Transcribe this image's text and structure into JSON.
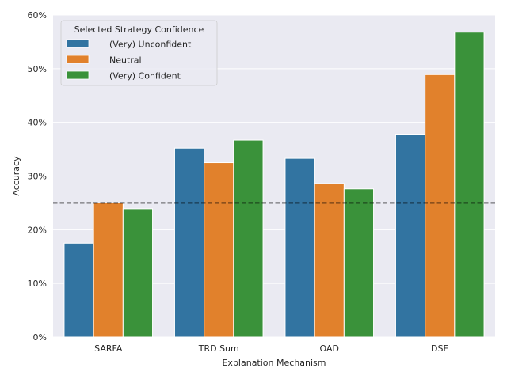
{
  "chart_data": {
    "type": "bar",
    "xlabel": "Explanation Mechanism",
    "ylabel": "Accuracy",
    "ylim": [
      0,
      60
    ],
    "yticks": [
      0,
      10,
      20,
      30,
      40,
      50,
      60
    ],
    "ytick_labels": [
      "0%",
      "10%",
      "20%",
      "30%",
      "40%",
      "50%",
      "60%"
    ],
    "categories": [
      "SARFA",
      "TRD Sum",
      "OAD",
      "DSE"
    ],
    "legend": {
      "title": "Selected Strategy Confidence",
      "position": "top-left"
    },
    "series": [
      {
        "name": "(Very) Unconfident",
        "color": "#3274a1",
        "values": [
          17.5,
          35.2,
          33.3,
          37.8
        ]
      },
      {
        "name": "Neutral",
        "color": "#e1812c",
        "values": [
          25.0,
          32.5,
          28.6,
          48.9
        ]
      },
      {
        "name": "(Very) Confident",
        "color": "#3a923a",
        "values": [
          23.9,
          36.7,
          27.6,
          56.8
        ]
      }
    ],
    "reference_line": {
      "value": 25,
      "style": "dashed",
      "color": "#000000"
    },
    "grid": true,
    "background": "#eaeaf2"
  }
}
